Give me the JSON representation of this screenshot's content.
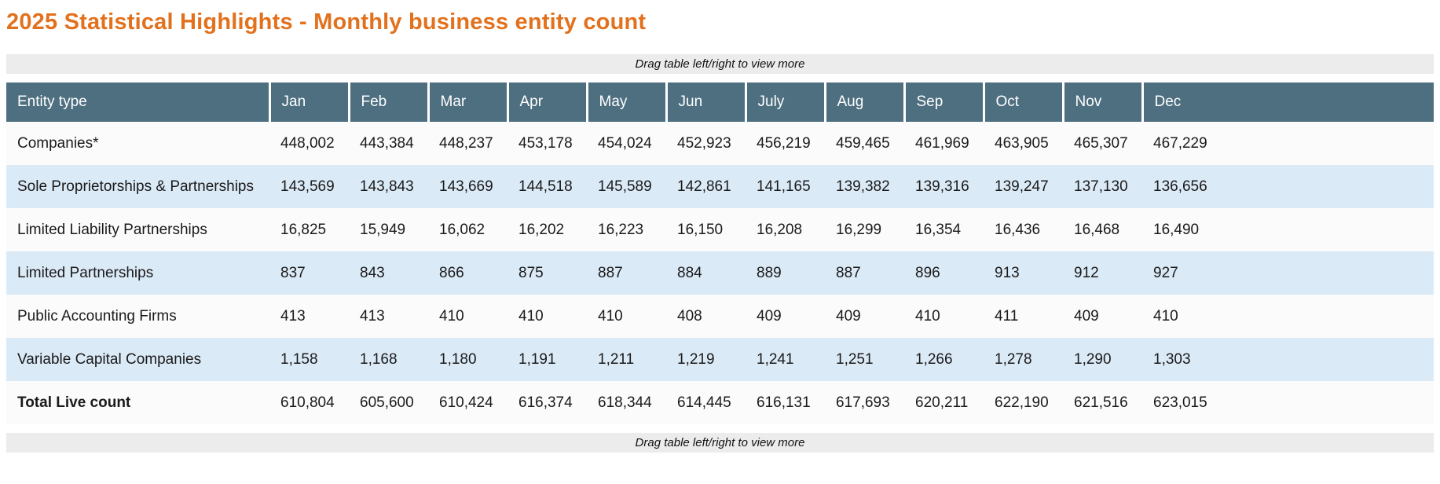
{
  "page": {
    "title": "2025 Statistical Highlights - Monthly business entity count",
    "drag_hint_top": "Drag table left/right to view more",
    "drag_hint_bottom": "Drag table left/right to view more"
  },
  "colors": {
    "title_orange": "#e2711d",
    "header_bg": "#4e6f80",
    "header_text": "#ffffff",
    "row_stripe_blue": "#dbeaf7",
    "row_stripe_white": "#fbfbfb",
    "drag_bar_bg": "#ececec",
    "body_text": "#1a1a1a"
  },
  "chart_data": {
    "type": "table",
    "title": "2025 Statistical Highlights - Monthly business entity count",
    "columns": [
      "Entity type",
      "Jan",
      "Feb",
      "Mar",
      "Apr",
      "May",
      "Jun",
      "July",
      "Aug",
      "Sep",
      "Oct",
      "Nov",
      "Dec"
    ],
    "rows": [
      {
        "label": "Companies*",
        "bold": false,
        "values": [
          "448,002",
          "443,384",
          "448,237",
          "453,178",
          "454,024",
          "452,923",
          "456,219",
          "459,465",
          "461,969",
          "463,905",
          "465,307",
          "467,229"
        ]
      },
      {
        "label": "Sole Proprietorships & Partnerships",
        "bold": false,
        "values": [
          "143,569",
          "143,843",
          "143,669",
          "144,518",
          "145,589",
          "142,861",
          "141,165",
          "139,382",
          "139,316",
          "139,247",
          "137,130",
          "136,656"
        ]
      },
      {
        "label": "Limited Liability Partnerships",
        "bold": false,
        "values": [
          "16,825",
          "15,949",
          "16,062",
          "16,202",
          "16,223",
          "16,150",
          "16,208",
          "16,299",
          "16,354",
          "16,436",
          "16,468",
          "16,490"
        ]
      },
      {
        "label": "Limited Partnerships",
        "bold": false,
        "values": [
          "837",
          "843",
          "866",
          "875",
          "887",
          "884",
          "889",
          "887",
          "896",
          "913",
          "912",
          "927"
        ]
      },
      {
        "label": "Public Accounting Firms",
        "bold": false,
        "values": [
          "413",
          "413",
          "410",
          "410",
          "410",
          "408",
          "409",
          "409",
          "410",
          "411",
          "409",
          "410"
        ]
      },
      {
        "label": "Variable Capital Companies",
        "bold": false,
        "values": [
          "1,158",
          "1,168",
          "1,180",
          "1,191",
          "1,211",
          "1,219",
          "1,241",
          "1,251",
          "1,266",
          "1,278",
          "1,290",
          "1,303"
        ]
      },
      {
        "label": "Total Live count",
        "bold": true,
        "values": [
          "610,804",
          "605,600",
          "610,424",
          "616,374",
          "618,344",
          "614,445",
          "616,131",
          "617,693",
          "620,211",
          "622,190",
          "621,516",
          "623,015"
        ]
      }
    ]
  }
}
